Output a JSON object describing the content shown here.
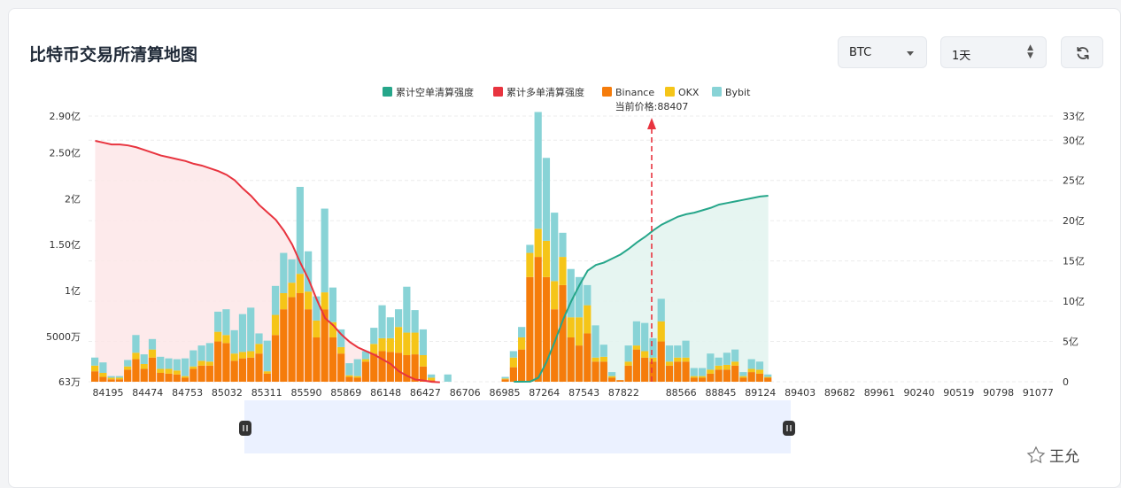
{
  "page": {
    "title": "比特币交易所清算地图",
    "coin_select": "BTC",
    "time_select": "1天",
    "refresh_icon": "refresh-icon",
    "watermark_text": "王允",
    "watermark_icon": "star-logo-icon"
  },
  "colors": {
    "short": "#26a68a",
    "long": "#e8343f",
    "binance": "#f57c0b",
    "okx": "#f5c518",
    "bybit": "#88d3d6",
    "long_fill": "#fde6e8",
    "short_fill": "#e3f4ef"
  },
  "chart_data": {
    "type": "bar",
    "legend": [
      "累计空单清算强度",
      "累计多单清算强度",
      "Binance",
      "OKX",
      "Bybit"
    ],
    "legend_position": "top-center",
    "current_price_label": "当前价格:88407",
    "current_price": 88407,
    "x_tick_labels": [
      "84195",
      "84474",
      "84753",
      "85032",
      "85311",
      "85590",
      "85869",
      "86148",
      "86427",
      "86706",
      "86985",
      "87264",
      "87543",
      "87822",
      "88566",
      "88845",
      "89124",
      "89403",
      "89682",
      "89961",
      "90240",
      "90519",
      "90798",
      "91077"
    ],
    "left_axis": {
      "ticks": [
        "63万",
        "5000万",
        "1亿",
        "1.50亿",
        "2亿",
        "2.50亿",
        "2.90亿"
      ],
      "tick_values": [
        630000,
        50000000,
        100000000,
        150000000,
        200000000,
        250000000,
        290000000
      ],
      "range": [
        630000,
        290000000
      ]
    },
    "right_axis": {
      "ticks": [
        "0",
        "5亿",
        "10亿",
        "15亿",
        "20亿",
        "25亿",
        "30亿",
        "33亿"
      ],
      "tick_values": [
        0,
        5,
        10,
        15,
        20,
        25,
        30,
        33
      ],
      "range": [
        0,
        33
      ]
    },
    "grid": true,
    "bars": {
      "binance": [
        1.3,
        0.6,
        0.3,
        0.3,
        1.5,
        2.8,
        1.6,
        3.0,
        1.1,
        1.0,
        0.9,
        0.5,
        1.6,
        2.0,
        2.0,
        5.0,
        4.8,
        2.6,
        2.9,
        3.0,
        3.5,
        1.0,
        5.8,
        9.0,
        10.5,
        11.0,
        9.0,
        5.5,
        9.0,
        5.5,
        3.5,
        0.6,
        0.5,
        2.5,
        3.5,
        3.8,
        3.7,
        3.6,
        3.3,
        3.4,
        1.9,
        0.2,
        0,
        0,
        0,
        0,
        0,
        0,
        0,
        0,
        0.3,
        1.8,
        4.0,
        13.0,
        15.5,
        13.0,
        9.0,
        12.0,
        5.5,
        4.5,
        6.0,
        2.5,
        2.5,
        0.5,
        0.2,
        2.0,
        4.0,
        3.0,
        2.5,
        5.0,
        2.0,
        2.5,
        2.5,
        0.5,
        0.5,
        1.0,
        1.5,
        1.5,
        2.0,
        0.5,
        1.2,
        1.0,
        0.5
      ],
      "okx": [
        0.7,
        0.5,
        0.2,
        0.2,
        0.4,
        0.8,
        0.6,
        1.0,
        0.5,
        0.6,
        0.5,
        0.2,
        0.3,
        0.6,
        0.5,
        1.2,
        1.0,
        0.9,
        0.8,
        0.8,
        1.2,
        0.3,
        2.5,
        2.0,
        1.8,
        2.4,
        2.2,
        2.1,
        2.1,
        1.9,
        0.8,
        0.2,
        0.2,
        0.3,
        1.2,
        1.6,
        1.7,
        3.2,
        2.8,
        2.7,
        1.4,
        0.3,
        0,
        0,
        0,
        0,
        0,
        0,
        0,
        0,
        0.1,
        1.2,
        1.5,
        3.0,
        3.5,
        4.5,
        3.5,
        3.5,
        2.5,
        3.5,
        3.5,
        0.5,
        0.6,
        0.2,
        0,
        0.5,
        0.5,
        0.8,
        0.5,
        2.5,
        0.5,
        0.5,
        0.5,
        0.2,
        0.2,
        0.5,
        0.5,
        0.6,
        0.5,
        0.2,
        0.4,
        0.5,
        0.1
      ],
      "bybit": [
        1.0,
        1.3,
        0.2,
        0.2,
        0.8,
        2.2,
        1.2,
        1.3,
        1.5,
        1.3,
        1.4,
        2.2,
        2.0,
        1.9,
        2.3,
        2.5,
        3.2,
        2.9,
        4.7,
        5.4,
        1.3,
        3.8,
        3.6,
        5.0,
        2.9,
        10.8,
        5.0,
        3.0,
        10.4,
        4.3,
        2.2,
        1.5,
        2.1,
        1.0,
        2.0,
        4.1,
        2.6,
        2.2,
        5.7,
        2.8,
        3.2,
        0.4,
        0,
        0.9,
        0,
        0,
        0,
        0,
        0,
        0,
        0.2,
        0.8,
        1.3,
        1.0,
        14.5,
        10.3,
        8.5,
        3.0,
        6.0,
        5.0,
        2.5,
        4.0,
        1.5,
        0.5,
        0,
        2.0,
        3.0,
        3.5,
        2.4,
        2.8,
        2.0,
        1.5,
        2.1,
        1.0,
        1.0,
        2.0,
        1.0,
        1.5,
        1.5,
        0.5,
        1.2,
        1.0,
        0.3
      ]
    },
    "long_cumulative": [
      2.63,
      2.61,
      2.59,
      2.59,
      2.58,
      2.56,
      2.53,
      2.5,
      2.47,
      2.45,
      2.43,
      2.41,
      2.38,
      2.36,
      2.33,
      2.3,
      2.26,
      2.2,
      2.11,
      2.03,
      1.93,
      1.85,
      1.77,
      1.65,
      1.5,
      1.3,
      1.12,
      0.9,
      0.7,
      0.62,
      0.52,
      0.44,
      0.38,
      0.34,
      0.3,
      0.25,
      0.2,
      0.12,
      0.07,
      0.03,
      0.02,
      0.005,
      0
    ],
    "short_cumulative": [
      0,
      0,
      0.02,
      0.5,
      2.5,
      5.0,
      7.7,
      10.0,
      12.0,
      13.8,
      14.5,
      14.8,
      15.3,
      15.8,
      16.5,
      17.3,
      18.0,
      18.8,
      19.5,
      20.0,
      20.5,
      20.8,
      21.0,
      21.3,
      21.6,
      22.0,
      22.2,
      22.4,
      22.6,
      22.8,
      23.0,
      23.1
    ]
  }
}
